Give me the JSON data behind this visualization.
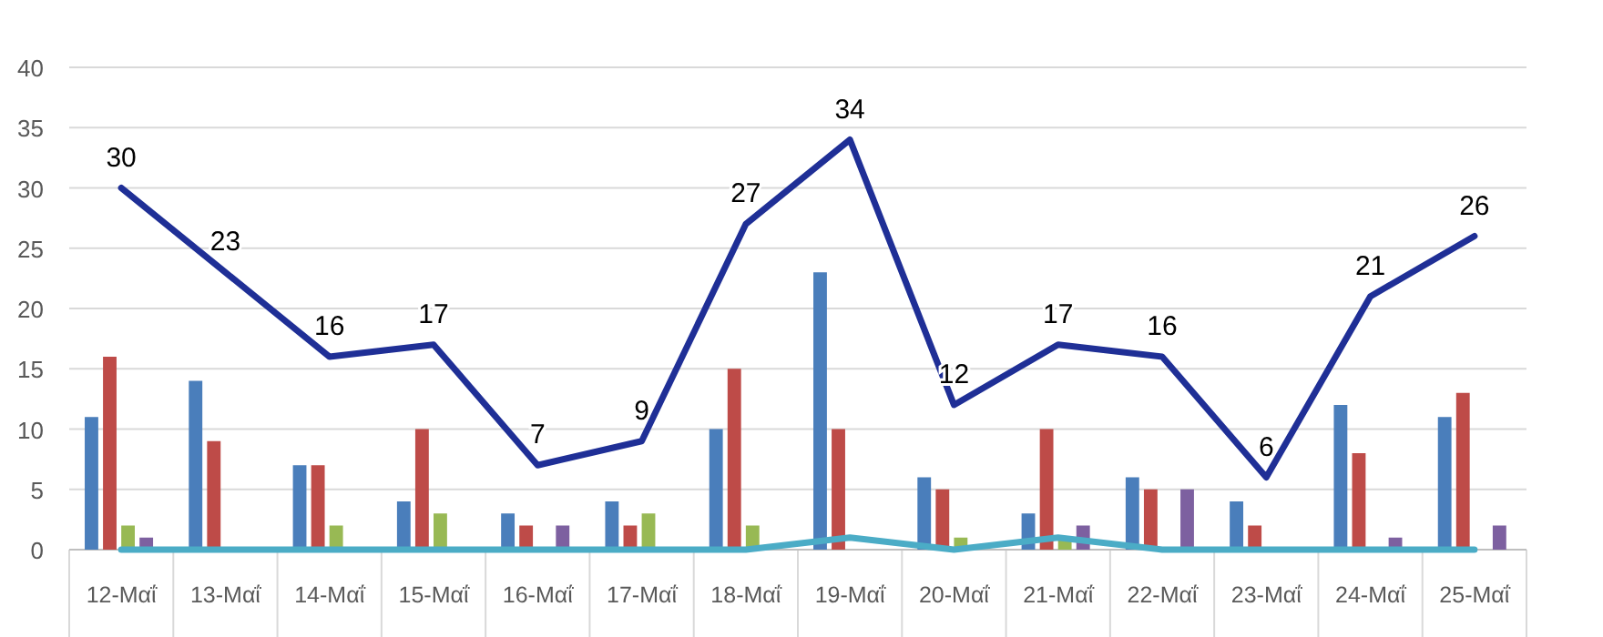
{
  "chart_data": {
    "type": "bar",
    "categories": [
      "12-Μαΐ",
      "13-Μαΐ",
      "14-Μαΐ",
      "15-Μαΐ",
      "16-Μαΐ",
      "17-Μαΐ",
      "18-Μαΐ",
      "19-Μαΐ",
      "20-Μαΐ",
      "21-Μαΐ",
      "22-Μαΐ",
      "23-Μαΐ",
      "24-Μαΐ",
      "25-Μαΐ"
    ],
    "series": [
      {
        "color": "#4a7ebb",
        "values": [
          11,
          14,
          7,
          4,
          3,
          4,
          10,
          23,
          6,
          3,
          6,
          4,
          12,
          11
        ]
      },
      {
        "color": "#be4b48",
        "values": [
          16,
          9,
          7,
          10,
          2,
          2,
          15,
          10,
          5,
          10,
          5,
          2,
          8,
          13
        ]
      },
      {
        "color": "#98b954",
        "values": [
          2,
          0,
          2,
          3,
          0,
          3,
          2,
          0,
          1,
          1,
          0,
          0,
          0,
          0
        ]
      },
      {
        "color": "#7d60a0",
        "values": [
          1,
          0,
          0,
          0,
          2,
          0,
          0,
          0,
          0,
          2,
          5,
          0,
          1,
          2
        ]
      },
      {
        "type": "line",
        "color": "#4bacc6",
        "values": [
          0,
          0,
          0,
          0,
          0,
          0,
          0,
          1,
          0,
          1,
          0,
          0,
          0,
          0
        ]
      },
      {
        "type": "line",
        "color": "#1f2f96",
        "data_labels": true,
        "values": [
          30,
          23,
          16,
          17,
          7,
          9,
          27,
          34,
          12,
          17,
          16,
          6,
          21,
          26
        ]
      }
    ],
    "ylim": [
      0,
      40
    ],
    "yticks": [
      0,
      5,
      10,
      15,
      20,
      25,
      30,
      35,
      40
    ],
    "grid": "y",
    "marker": "none",
    "line_style": "solid"
  }
}
